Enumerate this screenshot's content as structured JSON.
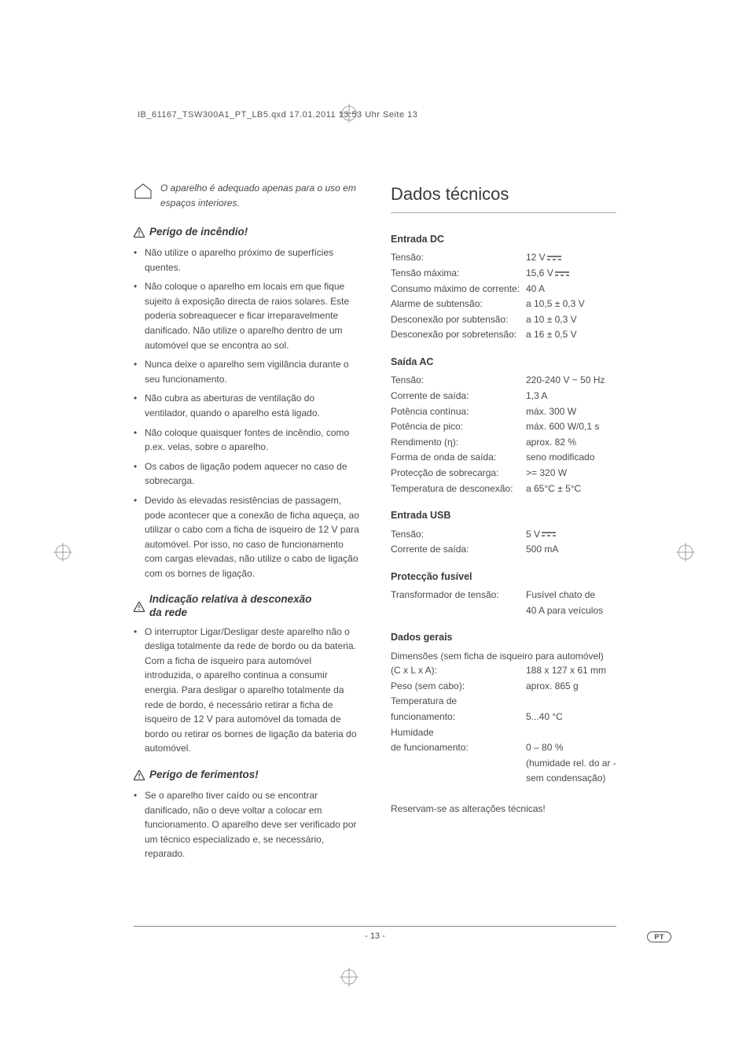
{
  "header_line": "IB_61167_TSW300A1_PT_LB5.qxd  17.01.2011  13:53 Uhr  Seite 13",
  "page_number": "- 13 -",
  "lang_badge": "PT",
  "left": {
    "house_note": "O aparelho é adequado apenas para o uso em espaços interiores.",
    "fire_title": "Perigo de incêndio!",
    "fire_bullets": [
      "Não utilize o aparelho próximo de superfícies quentes.",
      "Não coloque o aparelho em locais em que fique sujeito à exposição directa de raios solares. Este poderia sobreaquecer e ficar irreparavelmente danificado. Não utilize o aparelho dentro de um automóvel que se encontra ao sol.",
      "Nunca deixe o aparelho sem vigilância durante o seu funcionamento.",
      "Não cubra as aberturas de ventilação do ventilador, quando o aparelho está ligado.",
      " Não coloque quaisquer fontes de incêndio, como p.ex. velas, sobre o aparelho.",
      "Os cabos de ligação podem aquecer no caso de sobrecarga.",
      "Devido às elevadas resistências de passagem, pode acontecer que a conexão de ficha aqueça, ao utilizar o cabo com a ficha de isqueiro de 12 V para automóvel. Por isso, no caso de funcionamento com cargas elevadas, não utilize o cabo de ligação com os bornes de ligação."
    ],
    "disc_title_l1": "Indicação relativa à desconexão",
    "disc_title_l2": "da rede",
    "disc_bullets": [
      "O interruptor Ligar/Desligar deste aparelho não o desliga totalmente da rede de bordo ou da bateria. Com a ficha de isqueiro para automóvel introduzida, o aparelho continua a consumir energia. Para desligar o aparelho totalmente da rede de bordo, é necessário retirar a ficha de isqueiro de 12 V para automóvel da tomada de bordo ou retirar os bornes de ligação da bateria do automóvel."
    ],
    "injury_title": "Perigo de ferimentos!",
    "injury_bullets": [
      "Se o aparelho tiver caído ou se encontrar danificado, não o deve voltar a colocar em funcionamento. O aparelho deve ser verificado por um técnico especializado e, se necessário, reparado."
    ]
  },
  "right": {
    "section_title": "Dados técnicos",
    "groups": [
      {
        "head": "Entrada DC",
        "rows": [
          {
            "label": "Tensão:",
            "value": "12 V",
            "dc": true
          },
          {
            "label": "Tensão máxima:",
            "value": "15,6 V",
            "dc": true
          },
          {
            "label": "Consumo máximo de corrente:",
            "value": "40 A"
          },
          {
            "label": "Alarme de subtensão:",
            "value": "a 10,5 ± 0,3 V"
          },
          {
            "label": "Desconexão por subtensão:",
            "value": "a 10 ± 0,3 V"
          },
          {
            "label": "Desconexão por sobretensão:",
            "value": "a 16 ± 0,5 V"
          }
        ]
      },
      {
        "head": "Saída AC",
        "rows": [
          {
            "label": "Tensão:",
            "value": "220-240 V ~ 50 Hz"
          },
          {
            "label": "Corrente de saída:",
            "value": "1,3 A"
          },
          {
            "label": "Potência contínua:",
            "value": "máx. 300 W"
          },
          {
            "label": "Potência de pico:",
            "value": "máx. 600 W/0,1 s"
          },
          {
            "label": "Rendimento (η):",
            "value": "aprox. 82 %"
          },
          {
            "label": "Forma de onda de saída:",
            "value": "seno modificado"
          },
          {
            "label": "Protecção de sobrecarga:",
            "value": ">= 320 W"
          },
          {
            "label": "Temperatura de desconexão:",
            "value": "a 65°C ± 5°C"
          }
        ]
      },
      {
        "head": "Entrada USB",
        "rows": [
          {
            "label": "Tensão:",
            "value": "5 V",
            "dc": true
          },
          {
            "label": "Corrente de saída:",
            "value": "500 mA"
          }
        ]
      },
      {
        "head": "Protecção fusível",
        "rows": [
          {
            "label": "Transformador de tensão:",
            "value": "Fusível chato de"
          },
          {
            "label": "",
            "value": "40 A para veículos"
          }
        ]
      },
      {
        "head": "Dados gerais",
        "pre": "Dimensões (sem ficha de isqueiro para automóvel)",
        "rows": [
          {
            "label": "(C x L x A):",
            "value": "188 x 127 x 61 mm"
          },
          {
            "label": "Peso (sem cabo):",
            "value": "aprox. 865 g"
          },
          {
            "label": "Temperatura de",
            "value": ""
          },
          {
            "label": "funcionamento:",
            "value": "5...40 °C"
          },
          {
            "label": "Humidade",
            "value": ""
          },
          {
            "label": "de funcionamento:",
            "value": "0 – 80 %"
          },
          {
            "label": "",
            "value": "(humidade rel. do ar -"
          },
          {
            "label": "",
            "value": "sem condensação)"
          }
        ]
      }
    ],
    "footnote": "Reservam-se as alterações técnicas!"
  }
}
